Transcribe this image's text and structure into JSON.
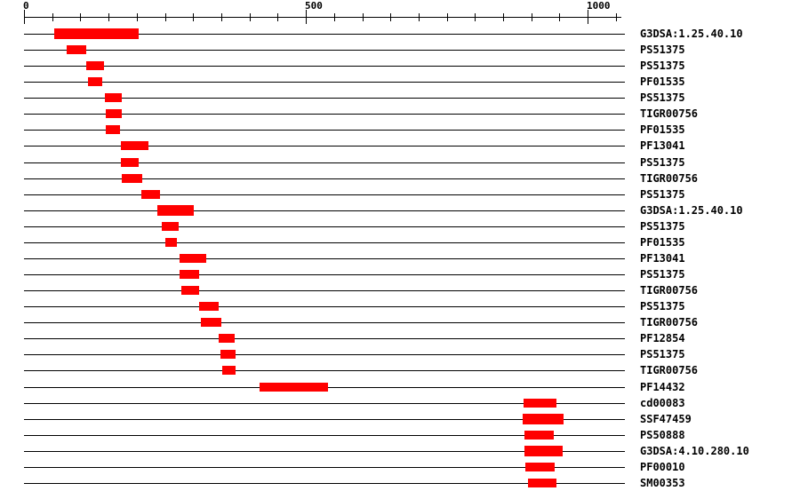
{
  "colors": {
    "background": "#ffffff",
    "bar": "#ff0000",
    "line": "#000000",
    "text": "#000000"
  },
  "chart_data": {
    "type": "bar",
    "subtype": "horizontal-range-domain-architecture",
    "title": "",
    "xlabel": "",
    "ylabel": "",
    "legend": null,
    "grid": false,
    "axis": {
      "min": 0,
      "max": 1050,
      "minor_tick_step": 50,
      "major_ticks": [
        0,
        500,
        1000
      ],
      "major_tick_labels": [
        "0",
        "500",
        "1000"
      ]
    },
    "sequence_length": 1066,
    "rows": [
      {
        "label": "G3DSA:1.25.40.10",
        "start": 54,
        "end": 203
      },
      {
        "label": "PS51375",
        "start": 76,
        "end": 110
      },
      {
        "label": "PS51375",
        "start": 110,
        "end": 142
      },
      {
        "label": "PF01535",
        "start": 114,
        "end": 138
      },
      {
        "label": "PS51375",
        "start": 143,
        "end": 173
      },
      {
        "label": "TIGR00756",
        "start": 145,
        "end": 174
      },
      {
        "label": "PF01535",
        "start": 145,
        "end": 170
      },
      {
        "label": "PF13041",
        "start": 172,
        "end": 220
      },
      {
        "label": "PS51375",
        "start": 172,
        "end": 203
      },
      {
        "label": "TIGR00756",
        "start": 174,
        "end": 210
      },
      {
        "label": "PS51375",
        "start": 208,
        "end": 242
      },
      {
        "label": "G3DSA:1.25.40.10",
        "start": 237,
        "end": 301
      },
      {
        "label": "PS51375",
        "start": 245,
        "end": 274
      },
      {
        "label": "PF01535",
        "start": 250,
        "end": 271
      },
      {
        "label": "PF13041",
        "start": 276,
        "end": 324
      },
      {
        "label": "PS51375",
        "start": 276,
        "end": 311
      },
      {
        "label": "TIGR00756",
        "start": 279,
        "end": 311
      },
      {
        "label": "PS51375",
        "start": 311,
        "end": 346
      },
      {
        "label": "TIGR00756",
        "start": 313,
        "end": 350
      },
      {
        "label": "PF12854",
        "start": 345,
        "end": 373
      },
      {
        "label": "PS51375",
        "start": 348,
        "end": 376
      },
      {
        "label": "TIGR00756",
        "start": 352,
        "end": 375
      },
      {
        "label": "PF14432",
        "start": 418,
        "end": 540
      },
      {
        "label": "cd00083",
        "start": 886,
        "end": 944
      },
      {
        "label": "SSF47459",
        "start": 885,
        "end": 957
      },
      {
        "label": "PS50888",
        "start": 888,
        "end": 939
      },
      {
        "label": "G3DSA:4.10.280.10",
        "start": 887,
        "end": 956
      },
      {
        "label": "PF00010",
        "start": 890,
        "end": 941
      },
      {
        "label": "SM00353",
        "start": 894,
        "end": 944
      }
    ]
  }
}
